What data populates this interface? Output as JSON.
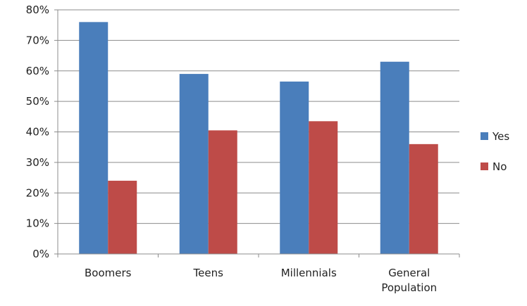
{
  "chart_data": {
    "type": "bar",
    "title": "",
    "xlabel": "",
    "ylabel": "",
    "categories": [
      "Boomers",
      "Teens",
      "Millennials",
      "General Population"
    ],
    "category_lines": [
      [
        "Boomers"
      ],
      [
        "Teens"
      ],
      [
        "Millennials"
      ],
      [
        "General",
        "Population"
      ]
    ],
    "series": [
      {
        "name": "Yes",
        "color": "#4a7ebb",
        "values": [
          76,
          59,
          56.5,
          63
        ]
      },
      {
        "name": "No",
        "color": "#be4b48",
        "values": [
          24,
          40.5,
          43.5,
          36
        ]
      }
    ],
    "ylim": [
      0,
      80
    ],
    "yticks": [
      0,
      10,
      20,
      30,
      40,
      50,
      60,
      70,
      80
    ],
    "ytick_labels": [
      "0%",
      "10%",
      "20%",
      "30%",
      "40%",
      "50%",
      "60%",
      "70%",
      "80%"
    ],
    "grid": true,
    "legend_position": "right"
  }
}
